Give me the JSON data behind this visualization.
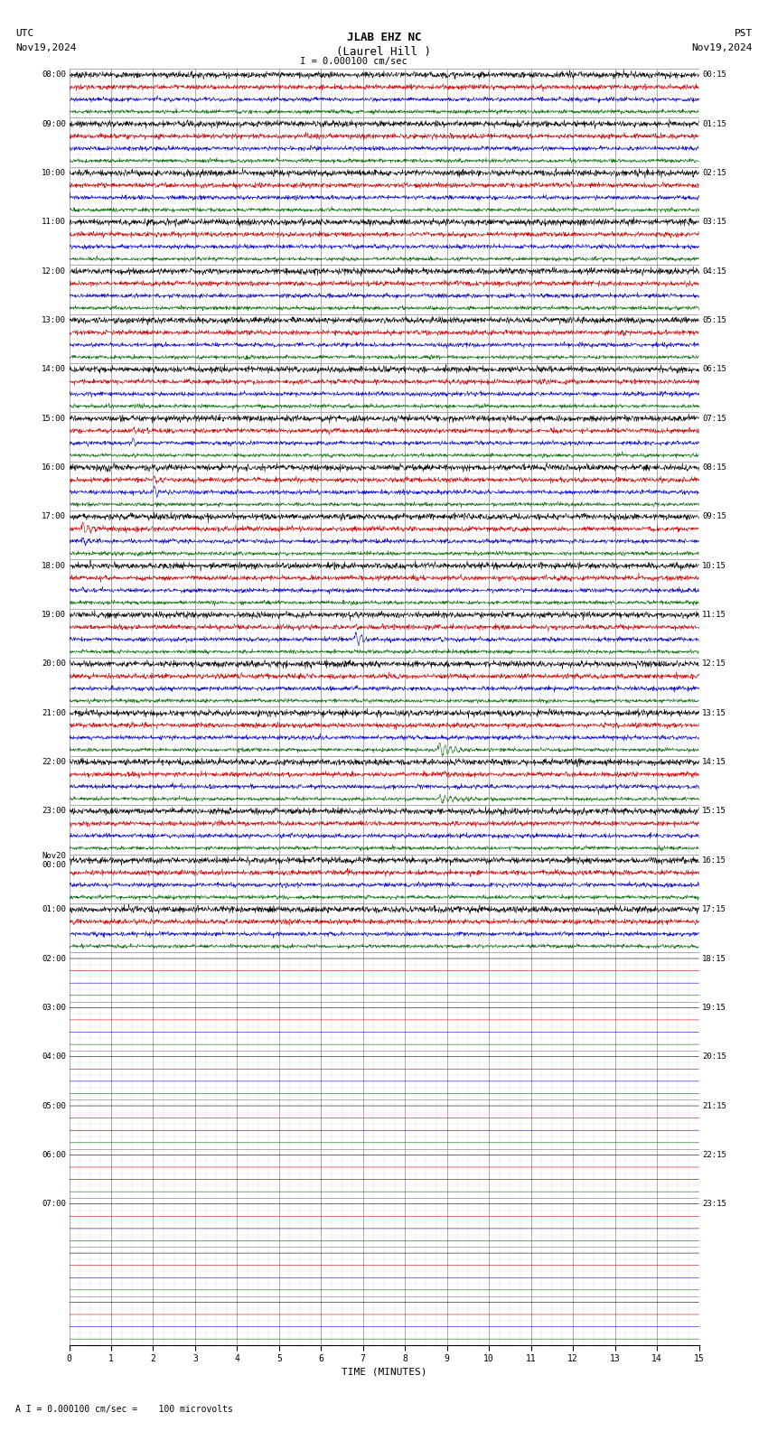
{
  "title_station": "JLAB EHZ NC",
  "title_location": "(Laurel Hill )",
  "title_scale": "I = 0.000100 cm/sec",
  "utc_label": "UTC",
  "utc_date": "Nov19,2024",
  "pst_label": "PST",
  "pst_date": "Nov19,2024",
  "footer_label": "A I = 0.000100 cm/sec =    100 microvolts",
  "xlabel": "TIME (MINUTES)",
  "bg_color": "#ffffff",
  "trace_colors": [
    "#000000",
    "#cc0000",
    "#0000cc",
    "#006600"
  ],
  "grid_color": "#888888",
  "n_hour_blocks": 18,
  "minutes_per_row": 15,
  "font_size_labels": 7,
  "font_size_title": 9,
  "noise_amp": 0.12,
  "utc_times": [
    "08:00",
    "09:00",
    "10:00",
    "11:00",
    "12:00",
    "13:00",
    "14:00",
    "15:00",
    "16:00",
    "17:00",
    "18:00",
    "19:00",
    "20:00",
    "21:00",
    "22:00",
    "23:00",
    "Nov20\n00:00",
    "01:00"
  ],
  "pst_times": [
    "00:15",
    "01:15",
    "02:15",
    "03:15",
    "04:15",
    "05:15",
    "06:15",
    "07:15",
    "08:15",
    "09:15",
    "10:15",
    "11:15",
    "12:15",
    "13:15",
    "14:15",
    "15:15",
    "16:15",
    "17:15"
  ],
  "extra_hour_blocks": 8,
  "extra_utc_times": [
    "02:00",
    "03:00",
    "04:00",
    "05:00",
    "06:00",
    "07:00",
    "",
    ""
  ],
  "extra_pst_times": [
    "18:15",
    "19:15",
    "20:15",
    "21:15",
    "22:15",
    "23:15",
    "",
    ""
  ],
  "events": [
    {
      "block": 7,
      "trace": 2,
      "t0": 1.5,
      "amp": 12.0,
      "dur": 0.15,
      "color": "blue"
    },
    {
      "block": 7,
      "trace": 1,
      "t0": 1.5,
      "amp": 8.0,
      "dur": 0.15,
      "color": "red"
    },
    {
      "block": 7,
      "trace": 0,
      "t0": 1.5,
      "amp": 6.0,
      "dur": 0.12,
      "color": "black"
    },
    {
      "block": 7,
      "trace": 3,
      "t0": 1.5,
      "amp": 3.0,
      "dur": 0.1,
      "color": "green"
    },
    {
      "block": 8,
      "trace": 2,
      "t0": 2.0,
      "amp": 15.0,
      "dur": 0.2,
      "color": "blue"
    },
    {
      "block": 8,
      "trace": 1,
      "t0": 2.0,
      "amp": 10.0,
      "dur": 0.2,
      "color": "red"
    },
    {
      "block": 8,
      "trace": 0,
      "t0": 2.0,
      "amp": 4.0,
      "dur": 0.15,
      "color": "black"
    },
    {
      "block": 8,
      "trace": 3,
      "t0": 2.0,
      "amp": 2.0,
      "dur": 0.1,
      "color": "green"
    },
    {
      "block": 9,
      "trace": 1,
      "t0": 0.3,
      "amp": 18.0,
      "dur": 0.3,
      "color": "red"
    },
    {
      "block": 9,
      "trace": 2,
      "t0": 0.3,
      "amp": 8.0,
      "dur": 0.3,
      "color": "blue"
    },
    {
      "block": 9,
      "trace": 0,
      "t0": 0.3,
      "amp": 3.0,
      "dur": 0.15,
      "color": "black"
    },
    {
      "block": 9,
      "trace": 3,
      "t0": 0.8,
      "amp": 5.0,
      "dur": 0.15,
      "color": "green"
    },
    {
      "block": 9,
      "trace": 2,
      "t0": 2.5,
      "amp": 5.0,
      "dur": 0.2,
      "color": "blue"
    },
    {
      "block": 10,
      "trace": 2,
      "t0": 0.3,
      "amp": 8.0,
      "dur": 0.15,
      "color": "blue"
    },
    {
      "block": 10,
      "trace": 1,
      "t0": 0.3,
      "amp": 3.0,
      "dur": 0.1,
      "color": "red"
    },
    {
      "block": 11,
      "trace": 2,
      "t0": 6.8,
      "amp": 18.0,
      "dur": 0.25,
      "color": "blue"
    },
    {
      "block": 11,
      "trace": 1,
      "t0": 6.8,
      "amp": 5.0,
      "dur": 0.2,
      "color": "red"
    },
    {
      "block": 11,
      "trace": 0,
      "t0": 6.8,
      "amp": 4.0,
      "dur": 0.15,
      "color": "black"
    },
    {
      "block": 11,
      "trace": 3,
      "t0": 6.8,
      "amp": 3.0,
      "dur": 0.12,
      "color": "green"
    },
    {
      "block": 11,
      "trace": 2,
      "t0": 8.8,
      "amp": 5.0,
      "dur": 0.15,
      "color": "blue"
    },
    {
      "block": 11,
      "trace": 1,
      "t0": 8.8,
      "amp": 4.0,
      "dur": 0.12,
      "color": "red"
    },
    {
      "block": 12,
      "trace": 2,
      "t0": 6.8,
      "amp": 4.0,
      "dur": 0.15,
      "color": "blue"
    },
    {
      "block": 11,
      "trace": 0,
      "t0": 8.8,
      "amp": 2.0,
      "dur": 0.1,
      "color": "black"
    },
    {
      "block": 9,
      "trace": 1,
      "t0": 10.5,
      "amp": 6.0,
      "dur": 0.2,
      "color": "red"
    },
    {
      "block": 7,
      "trace": 0,
      "t0": 8.7,
      "amp": 3.0,
      "dur": 0.1,
      "color": "black"
    },
    {
      "block": 3,
      "trace": 2,
      "t0": 6.7,
      "amp": 6.0,
      "dur": 0.08,
      "color": "blue"
    },
    {
      "block": 4,
      "trace": 2,
      "t0": 6.7,
      "amp": 5.0,
      "dur": 0.08,
      "color": "blue"
    },
    {
      "block": 10,
      "trace": 1,
      "t0": 9.3,
      "amp": 6.0,
      "dur": 0.2,
      "color": "red"
    },
    {
      "block": 10,
      "trace": 0,
      "t0": 9.3,
      "amp": 3.0,
      "dur": 0.12,
      "color": "black"
    },
    {
      "block": 13,
      "trace": 3,
      "t0": 8.8,
      "amp": 18.0,
      "dur": 0.5,
      "color": "green"
    },
    {
      "block": 14,
      "trace": 3,
      "t0": 8.8,
      "amp": 10.0,
      "dur": 0.6,
      "color": "green"
    },
    {
      "block": 12,
      "trace": 2,
      "t0": 6.7,
      "amp": 5.0,
      "dur": 0.12,
      "color": "blue"
    },
    {
      "block": 13,
      "trace": 2,
      "t0": 6.7,
      "amp": 3.0,
      "dur": 0.1,
      "color": "blue"
    },
    {
      "block": 6,
      "trace": 3,
      "t0": 8.8,
      "amp": 3.0,
      "dur": 0.12,
      "color": "green"
    },
    {
      "block": 7,
      "trace": 3,
      "t0": 8.8,
      "amp": 2.0,
      "dur": 0.1,
      "color": "green"
    }
  ]
}
